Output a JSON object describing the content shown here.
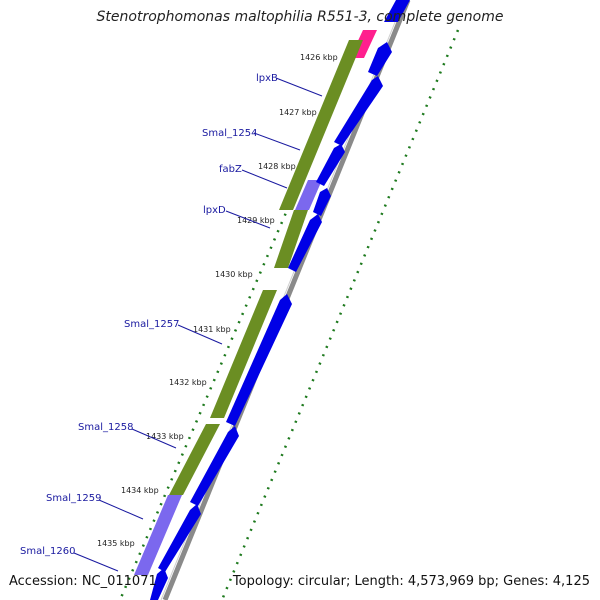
{
  "title": "Stenotrophomonas maltophilia R551-3, complete genome",
  "footer": {
    "accession": "Accession: NC_011071",
    "topology": "Topology: circular; Length: 4,573,969 bp; Genes: 4,125"
  },
  "colors": {
    "cds_blue": "#0000e6",
    "gene_green": "#6b8e23",
    "gene_purple": "#7b68ee",
    "gene_pink": "#ff1493",
    "label_blue": "#1a1aa0",
    "tick_green": "#1e7a1e",
    "backbone_gray": "#888888"
  },
  "kbp_ticks": [
    "1426 kbp",
    "1427 kbp",
    "1428 kbp",
    "1429 kbp",
    "1430 kbp",
    "1431 kbp",
    "1432 kbp",
    "1433 kbp",
    "1434 kbp",
    "1435 kbp"
  ],
  "gene_labels": [
    "lpxB",
    "Smal_1254",
    "fabZ",
    "lpxD",
    "Smal_1257",
    "Smal_1258",
    "Smal_1259",
    "Smal_1260"
  ]
}
